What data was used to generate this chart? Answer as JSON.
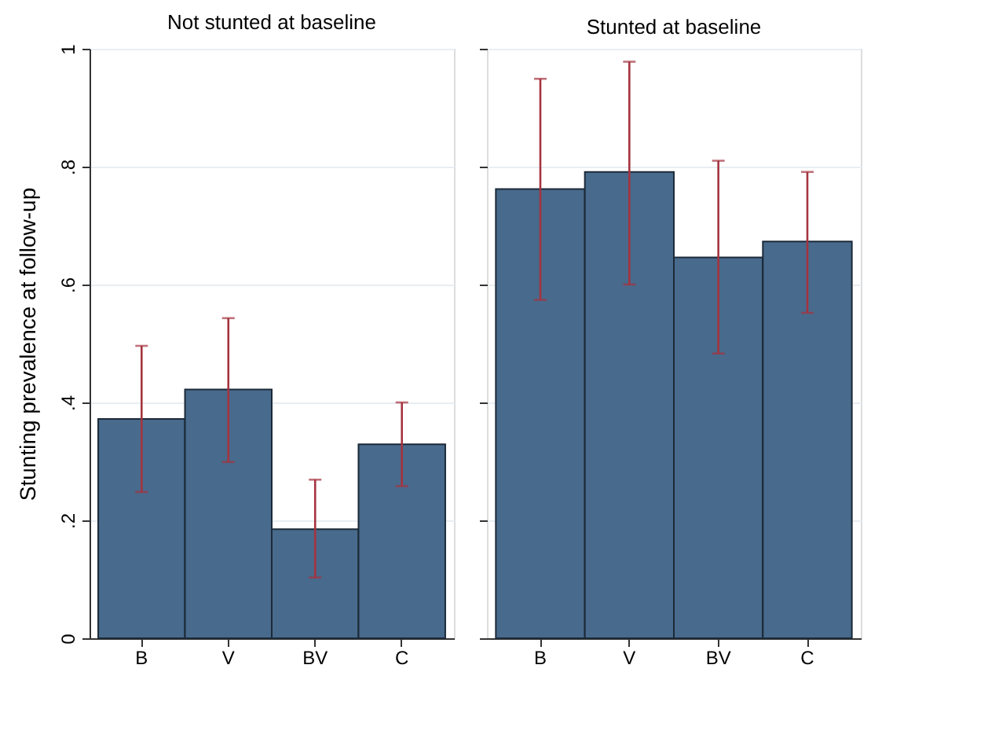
{
  "chart_data": [
    {
      "type": "bar",
      "title": "Not stunted at baseline",
      "ylabel": "Stunting prevalence at follow-up",
      "categories": [
        "B",
        "V",
        "BV",
        "C"
      ],
      "values": [
        0.372,
        0.422,
        0.185,
        0.329
      ],
      "color": "#486a8c",
      "errors": [
        [
          0.248,
          0.496
        ],
        [
          0.299,
          0.543
        ],
        [
          0.103,
          0.269
        ],
        [
          0.258,
          0.4
        ]
      ],
      "ylim": [
        0,
        1
      ],
      "yticks": [
        {
          "value": 0,
          "label": "0"
        },
        {
          "value": 0.2,
          "label": ".2"
        },
        {
          "value": 0.4,
          "label": ".4"
        },
        {
          "value": 0.6,
          "label": ".6"
        },
        {
          "value": 0.8,
          "label": ".8"
        },
        {
          "value": 1,
          "label": "1"
        }
      ],
      "grid": "y"
    },
    {
      "type": "bar",
      "title": "Stunted at baseline",
      "categories": [
        "B",
        "V",
        "BV",
        "C"
      ],
      "values": [
        0.762,
        0.791,
        0.646,
        0.673
      ],
      "color": "#486a8c",
      "errors": [
        [
          0.574,
          0.949
        ],
        [
          0.6,
          0.978
        ],
        [
          0.483,
          0.81
        ],
        [
          0.552,
          0.791
        ]
      ],
      "ylim": [
        0,
        1
      ],
      "yticks": [
        0,
        0.2,
        0.4,
        0.6,
        0.8,
        1
      ],
      "grid": "y",
      "tick_labels": "x"
    }
  ]
}
